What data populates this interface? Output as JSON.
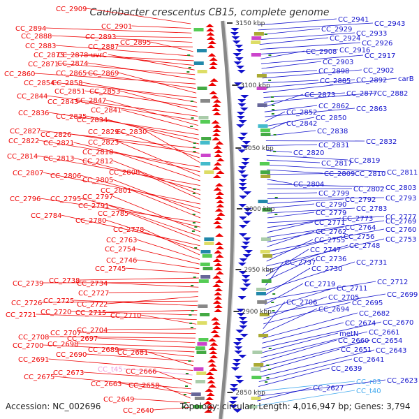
{
  "title": "Caulobacter crescentus CB15, complete genome",
  "footer": {
    "accession": "Accession: NC_002696",
    "topology": "Topology: circular; Length: 4,016,947 bp; Genes: 3,794"
  },
  "colors": {
    "left_genes": "#ee0000",
    "right_genes": "#1111cc",
    "rna": "#44aaee",
    "axis": "#888888",
    "tick": "#228822"
  },
  "scale_labels": [
    "3150 kbp",
    "3100 kbp",
    "3050 kbp",
    "3000 kbp",
    "2950 kbp",
    "2900 kbp",
    "2850 kbp"
  ],
  "left_labels": [
    "CC_2909",
    "CC_2901",
    "CC_2894",
    "CC_2893",
    "CC_2888",
    "CC_2887",
    "CC_2895",
    "CC_2883",
    "CC_2875",
    "CC_2878",
    "uvrC",
    "CC_2871",
    "CC_2874",
    "CC_2860",
    "CC_2865",
    "CC_2869",
    "CC_2854",
    "CC_2858",
    "CC_2851",
    "CC_2853",
    "CC_2844",
    "CC_2843",
    "CC_2847",
    "CC_2841",
    "CC_2836",
    "CC_2835",
    "CC_2834",
    "CC_2827",
    "CC_2826",
    "CC_2829",
    "CC_2830",
    "CC_2822",
    "CC_2821",
    "CC_2823",
    "CC_2818",
    "CC_2814",
    "CC_2813",
    "CC_2812",
    "CC_2808",
    "CC_2807",
    "CC_2806",
    "CC_2805",
    "CC_2801",
    "CC_2796",
    "CC_2795",
    "CC_2797",
    "CC_2791",
    "CC_2785",
    "CC_2784",
    "CC_2780",
    "CC_2778",
    "CC_2763",
    "CC_2754",
    "CC_2746",
    "CC_2745",
    "CC_2738",
    "CC_2739",
    "CC_2734",
    "CC_2727",
    "CC_2722",
    "CC_2726",
    "CC_2725",
    "CC_2715",
    "CC_2720",
    "CC_2721",
    "CC_2710",
    "CC_2704",
    "CC_2707",
    "CC_2708",
    "CC_2697",
    "CC_2698",
    "CC_2700",
    "CC_2689",
    "CC_2690",
    "CC_2681",
    "CC_2691",
    "CC_t45",
    "CC_2673",
    "CC_2666",
    "CC_2675",
    "CC_2663",
    "CC_2658",
    "CC_2649",
    "CC_2640"
  ],
  "right_labels": [
    "CC_2941",
    "CC_2943",
    "CC_2929",
    "CC_2933",
    "CC_2924",
    "CC_2926",
    "CC_2916",
    "CC_2908",
    "CC_2917",
    "CC_2903",
    "CC_2898",
    "CC_2902",
    "CC_2885",
    "CC_2892",
    "carB",
    "CC_2877",
    "CC_2882",
    "CC_2873",
    "CC_2862",
    "CC_2863",
    "CC_2852",
    "CC_2850",
    "CC_2842",
    "CC_2838",
    "CC_2832",
    "CC_2831",
    "CC_2820",
    "CC_2819",
    "CC_2817",
    "CC_2811",
    "CC_2809",
    "CC_2810",
    "CC_2804",
    "CC_2803",
    "CC_2802",
    "CC_2799",
    "CC_2793",
    "CC_2792",
    "CC_2790",
    "CC_2783",
    "CC_2779",
    "CC_2777",
    "CC_2773",
    "CC_2771",
    "CC_2769",
    "CC_2764",
    "CC_2762",
    "CC_2760",
    "CC_2756",
    "CC_2755",
    "CC_2753",
    "CC_2748",
    "CC_2747",
    "CC_2736",
    "CC_2737",
    "CC_2731",
    "CC_2730",
    "CC_2712",
    "CC_2719",
    "CC_2711",
    "CC_2699",
    "CC_2705",
    "CC_2695",
    "CC_2706",
    "CC_2694",
    "CC_2682",
    "CC_2674",
    "CC_2670",
    "metN",
    "CC_2661",
    "CC_2660",
    "CC_2654",
    "CC_2651",
    "CC_2643",
    "CC_2641",
    "CC_2639",
    "CC_r03",
    "CC_2623",
    "CC_2627",
    "CC_t40"
  ]
}
